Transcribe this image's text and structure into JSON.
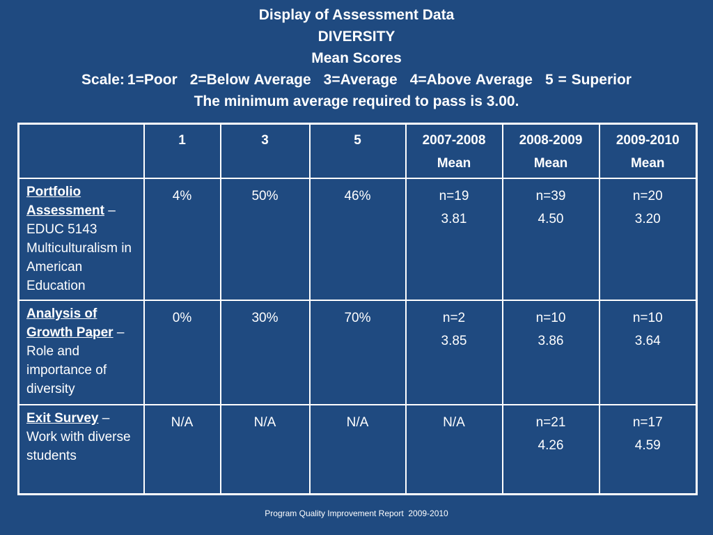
{
  "header": {
    "title": "Display of Assessment Data",
    "topic": "DIVERSITY",
    "subtitle": "Mean Scores",
    "scale_prefix": "Scale:",
    "scale_items": [
      "1=Poor",
      "2=Below Average",
      "3=Average",
      "4=Above Average",
      "5 = Superior"
    ],
    "pass_note": "The minimum average required to pass is 3.00."
  },
  "table": {
    "columns": [
      {
        "line1": "",
        "line2": ""
      },
      {
        "line1": "1",
        "line2": ""
      },
      {
        "line1": "3",
        "line2": ""
      },
      {
        "line1": "5",
        "line2": ""
      },
      {
        "line1": "2007-2008",
        "line2": "Mean"
      },
      {
        "line1": "2008-2009",
        "line2": "Mean"
      },
      {
        "line1": "2009-2010",
        "line2": "Mean"
      }
    ],
    "rows": [
      {
        "label": "Portfolio Assessment",
        "dash": " –",
        "description": "EDUC 5143 Multiculturalism in American Education",
        "pct1": "4%",
        "pct3": "50%",
        "pct5": "46%",
        "y2007_n": "n=19",
        "y2007_mean": "3.81",
        "y2008_n": "n=39",
        "y2008_mean": "4.50",
        "y2009_n": "n=20",
        "y2009_mean": "3.20"
      },
      {
        "label": "Analysis of Growth Paper",
        "dash": " –",
        "description": "Role and importance of diversity",
        "pct1": "0%",
        "pct3": "30%",
        "pct5": "70%",
        "y2007_n": "n=2",
        "y2007_mean": "3.85",
        "y2008_n": "n=10",
        "y2008_mean": "3.86",
        "y2009_n": "n=10",
        "y2009_mean": "3.64"
      },
      {
        "label": "Exit Survey",
        "dash": " –",
        "description": "Work with diverse students",
        "pct1": "N/A",
        "pct3": "N/A",
        "pct5": "N/A",
        "y2007_n": "N/A",
        "y2007_mean": "",
        "y2008_n": "n=21",
        "y2008_mean": "4.26",
        "y2009_n": "n=17",
        "y2009_mean": "4.59"
      }
    ]
  },
  "footer": {
    "text": "Program Quality Improvement Report  2009-2010"
  }
}
